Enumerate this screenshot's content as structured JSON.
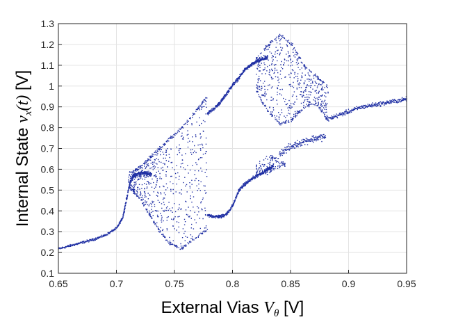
{
  "chart_data": {
    "type": "scatter",
    "title": "",
    "xlabel": {
      "prefix": "External Vias ",
      "var": "V",
      "sub": "θ",
      "suffix": "  [V]"
    },
    "ylabel": {
      "prefix": "Internal State ",
      "var": "v",
      "sub": "x",
      "arg": "(t)",
      "suffix": "  [V]"
    },
    "xlim": [
      0.65,
      0.95
    ],
    "ylim": [
      0.1,
      1.3
    ],
    "xticks": [
      "0.65",
      "0.7",
      "0.75",
      "0.8",
      "0.85",
      "0.9",
      "0.95"
    ],
    "yticks": [
      "0.1",
      "0.2",
      "0.3",
      "0.4",
      "0.5",
      "0.6",
      "0.7",
      "0.8",
      "0.9",
      "1",
      "1.1",
      "1.2",
      "1.3"
    ],
    "grid": true,
    "point_color": "#1f2fa3",
    "branches": [
      {
        "name": "lower-stable-branch",
        "x": [
          0.65,
          0.66,
          0.67,
          0.68,
          0.69,
          0.7,
          0.705
        ],
        "y": [
          0.22,
          0.235,
          0.25,
          0.265,
          0.285,
          0.32,
          0.37
        ],
        "spread": 0.008
      },
      {
        "name": "jump-rise",
        "x": [
          0.705,
          0.708,
          0.711,
          0.714,
          0.718,
          0.722,
          0.726,
          0.73
        ],
        "y": [
          0.37,
          0.45,
          0.53,
          0.57,
          0.58,
          0.585,
          0.58,
          0.58
        ],
        "spread": 0.015
      },
      {
        "name": "upper-mid-branch",
        "x": [
          0.778,
          0.785,
          0.79,
          0.795,
          0.8,
          0.805,
          0.81,
          0.815,
          0.82,
          0.825,
          0.83
        ],
        "y": [
          0.87,
          0.9,
          0.93,
          0.97,
          1.01,
          1.04,
          1.08,
          1.1,
          1.12,
          1.13,
          1.14
        ],
        "spread": 0.012
      },
      {
        "name": "lower-mid-branch",
        "x": [
          0.778,
          0.785,
          0.79,
          0.795,
          0.8,
          0.805,
          0.81,
          0.815,
          0.82,
          0.825,
          0.83,
          0.835
        ],
        "y": [
          0.38,
          0.375,
          0.375,
          0.39,
          0.43,
          0.5,
          0.53,
          0.55,
          0.57,
          0.585,
          0.6,
          0.62
        ],
        "spread": 0.012
      },
      {
        "name": "upper-right-branch",
        "x": [
          0.84,
          0.85,
          0.86,
          0.87,
          0.88
        ],
        "y": [
          0.68,
          0.71,
          0.735,
          0.75,
          0.76
        ],
        "spread": 0.025
      },
      {
        "name": "final-stable-branch",
        "x": [
          0.88,
          0.89,
          0.9,
          0.91,
          0.92,
          0.93,
          0.94,
          0.95
        ],
        "y": [
          0.84,
          0.86,
          0.88,
          0.9,
          0.91,
          0.92,
          0.93,
          0.94
        ],
        "spread": 0.015
      }
    ],
    "chaotic_regions": [
      {
        "name": "chaos-band-1",
        "x_range": [
          0.71,
          0.778
        ],
        "upper": [
          0.58,
          0.62,
          0.68,
          0.74,
          0.8,
          0.87,
          0.95
        ],
        "lower": [
          0.52,
          0.45,
          0.34,
          0.25,
          0.22,
          0.27,
          0.31
        ],
        "density": 900
      },
      {
        "name": "chaos-band-2",
        "x_range": [
          0.82,
          0.882
        ],
        "upper": [
          1.14,
          1.2,
          1.25,
          1.2,
          1.1,
          1.05,
          1.0
        ],
        "lower": [
          0.98,
          0.88,
          0.82,
          0.84,
          0.9,
          0.92,
          0.84
        ],
        "density": 700
      },
      {
        "name": "loop-lower",
        "x_range": [
          0.82,
          0.845
        ],
        "upper": [
          0.62,
          0.66,
          0.66,
          0.63
        ],
        "lower": [
          0.58,
          0.58,
          0.6,
          0.62
        ],
        "density": 120
      }
    ]
  }
}
